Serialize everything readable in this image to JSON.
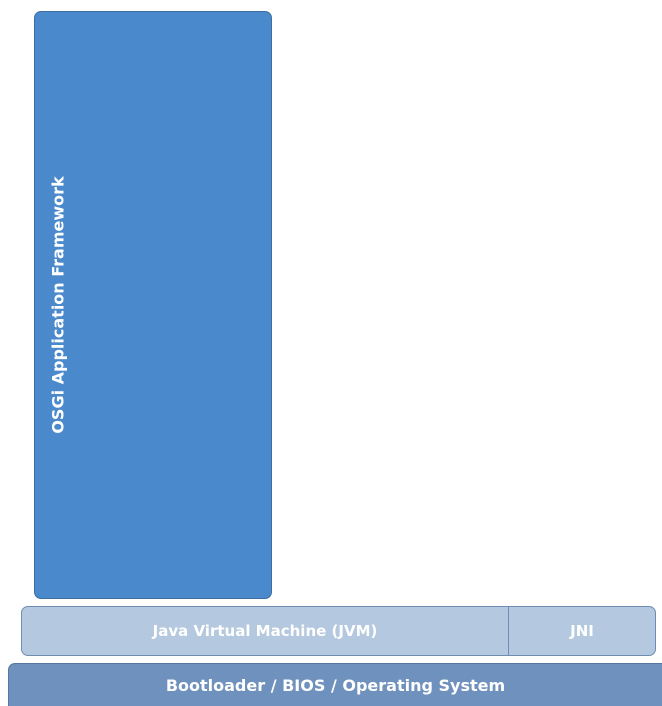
{
  "layers": {
    "osgi": {
      "label": "OSGi Application Framework"
    },
    "jvm": {
      "label": "Java Virtual Machine (JVM)"
    },
    "jni": {
      "label": "JNI"
    },
    "bootloader": {
      "label": "Bootloader / BIOS / Operating System"
    }
  },
  "colors": {
    "osgi_fill": "#4a89cc",
    "jvm_fill": "#b4c8df",
    "bootloader_fill": "#6f91bd",
    "text": "#ffffff"
  }
}
